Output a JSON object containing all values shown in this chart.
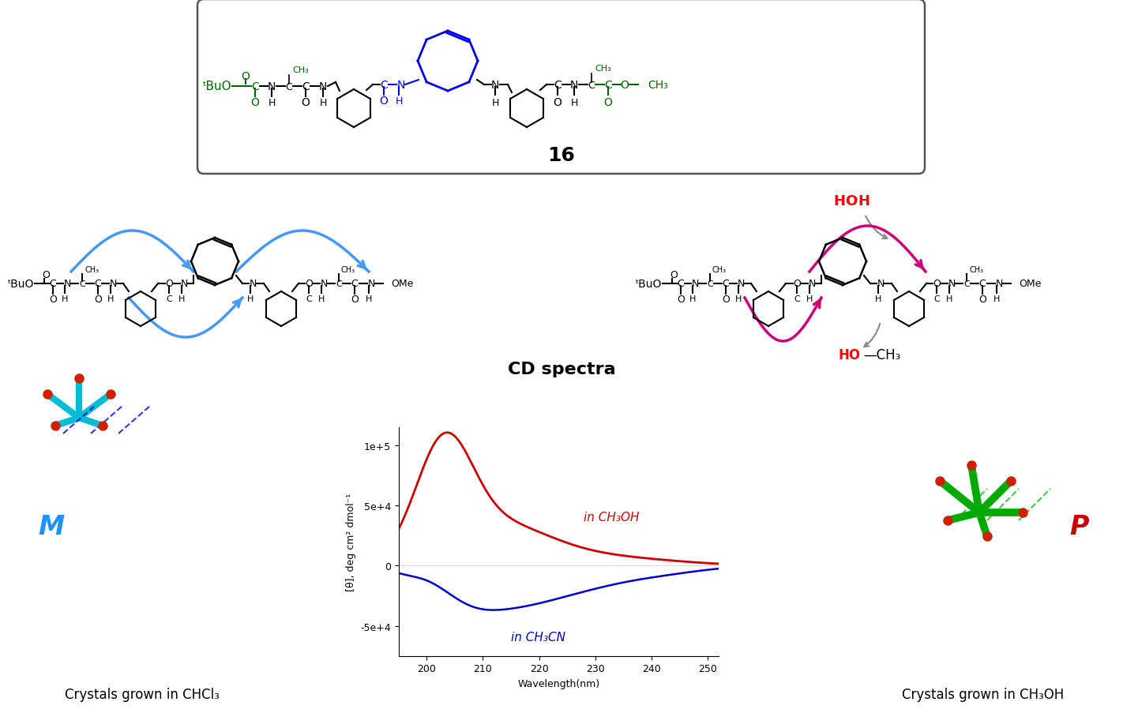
{
  "title": "CD spectra",
  "cd_wavelength_min": 195,
  "cd_wavelength_max": 252,
  "cd_ylim_min": -75000,
  "cd_ylim_max": 115000,
  "cd_yticks": [
    -50000,
    0,
    50000,
    100000
  ],
  "cd_ytick_labels": [
    "-5e+4",
    "0",
    "5e+4",
    "1e+5"
  ],
  "cd_xticks": [
    200,
    210,
    220,
    230,
    240,
    250
  ],
  "cd_xlabel": "Wavelength(nm)",
  "cd_ylabel": "[θ], deg cm² dmol⁻¹",
  "red_label": "in CH₃OH",
  "blue_label": "in CH₃CN",
  "red_color": "#cc0000",
  "blue_color": "#0000cc",
  "background_color": "#ffffff",
  "compound_label": "16",
  "M_label": "M",
  "P_label": "P",
  "M_color": "#1e90ff",
  "P_color": "#cc0000",
  "chcl3_label": "Crystals grown in CHCl₃",
  "meoh_label": "Crystals grown in CH₃OH",
  "fig_width": 14.22,
  "fig_height": 9.04,
  "dpi": 100,
  "green_color": "#006600",
  "blue_ring_color": "#0000ee",
  "pink_arrow_color": "#cc0077",
  "cyan_mol_color": "#00bcd4",
  "gray_arrow_color": "#888888"
}
